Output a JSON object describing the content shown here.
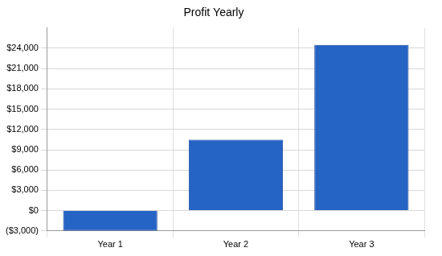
{
  "chart_data": {
    "type": "bar",
    "title": "Profit Yearly",
    "categories": [
      "Year 1",
      "Year 2",
      "Year 3"
    ],
    "values": [
      -3000,
      10500,
      24500
    ],
    "color": "#2563c4",
    "ylim": [
      -3000,
      27000
    ],
    "yticks": [
      {
        "value": -3000,
        "label": "($3,000)"
      },
      {
        "value": 0,
        "label": "$0"
      },
      {
        "value": 3000,
        "label": "$3,000"
      },
      {
        "value": 6000,
        "label": "$6,000"
      },
      {
        "value": 9000,
        "label": "$9,000"
      },
      {
        "value": 12000,
        "label": "$12,000"
      },
      {
        "value": 15000,
        "label": "$15,000"
      },
      {
        "value": 18000,
        "label": "$18,000"
      },
      {
        "value": 21000,
        "label": "$21,000"
      },
      {
        "value": 24000,
        "label": "$24,000"
      }
    ],
    "grid": true
  }
}
